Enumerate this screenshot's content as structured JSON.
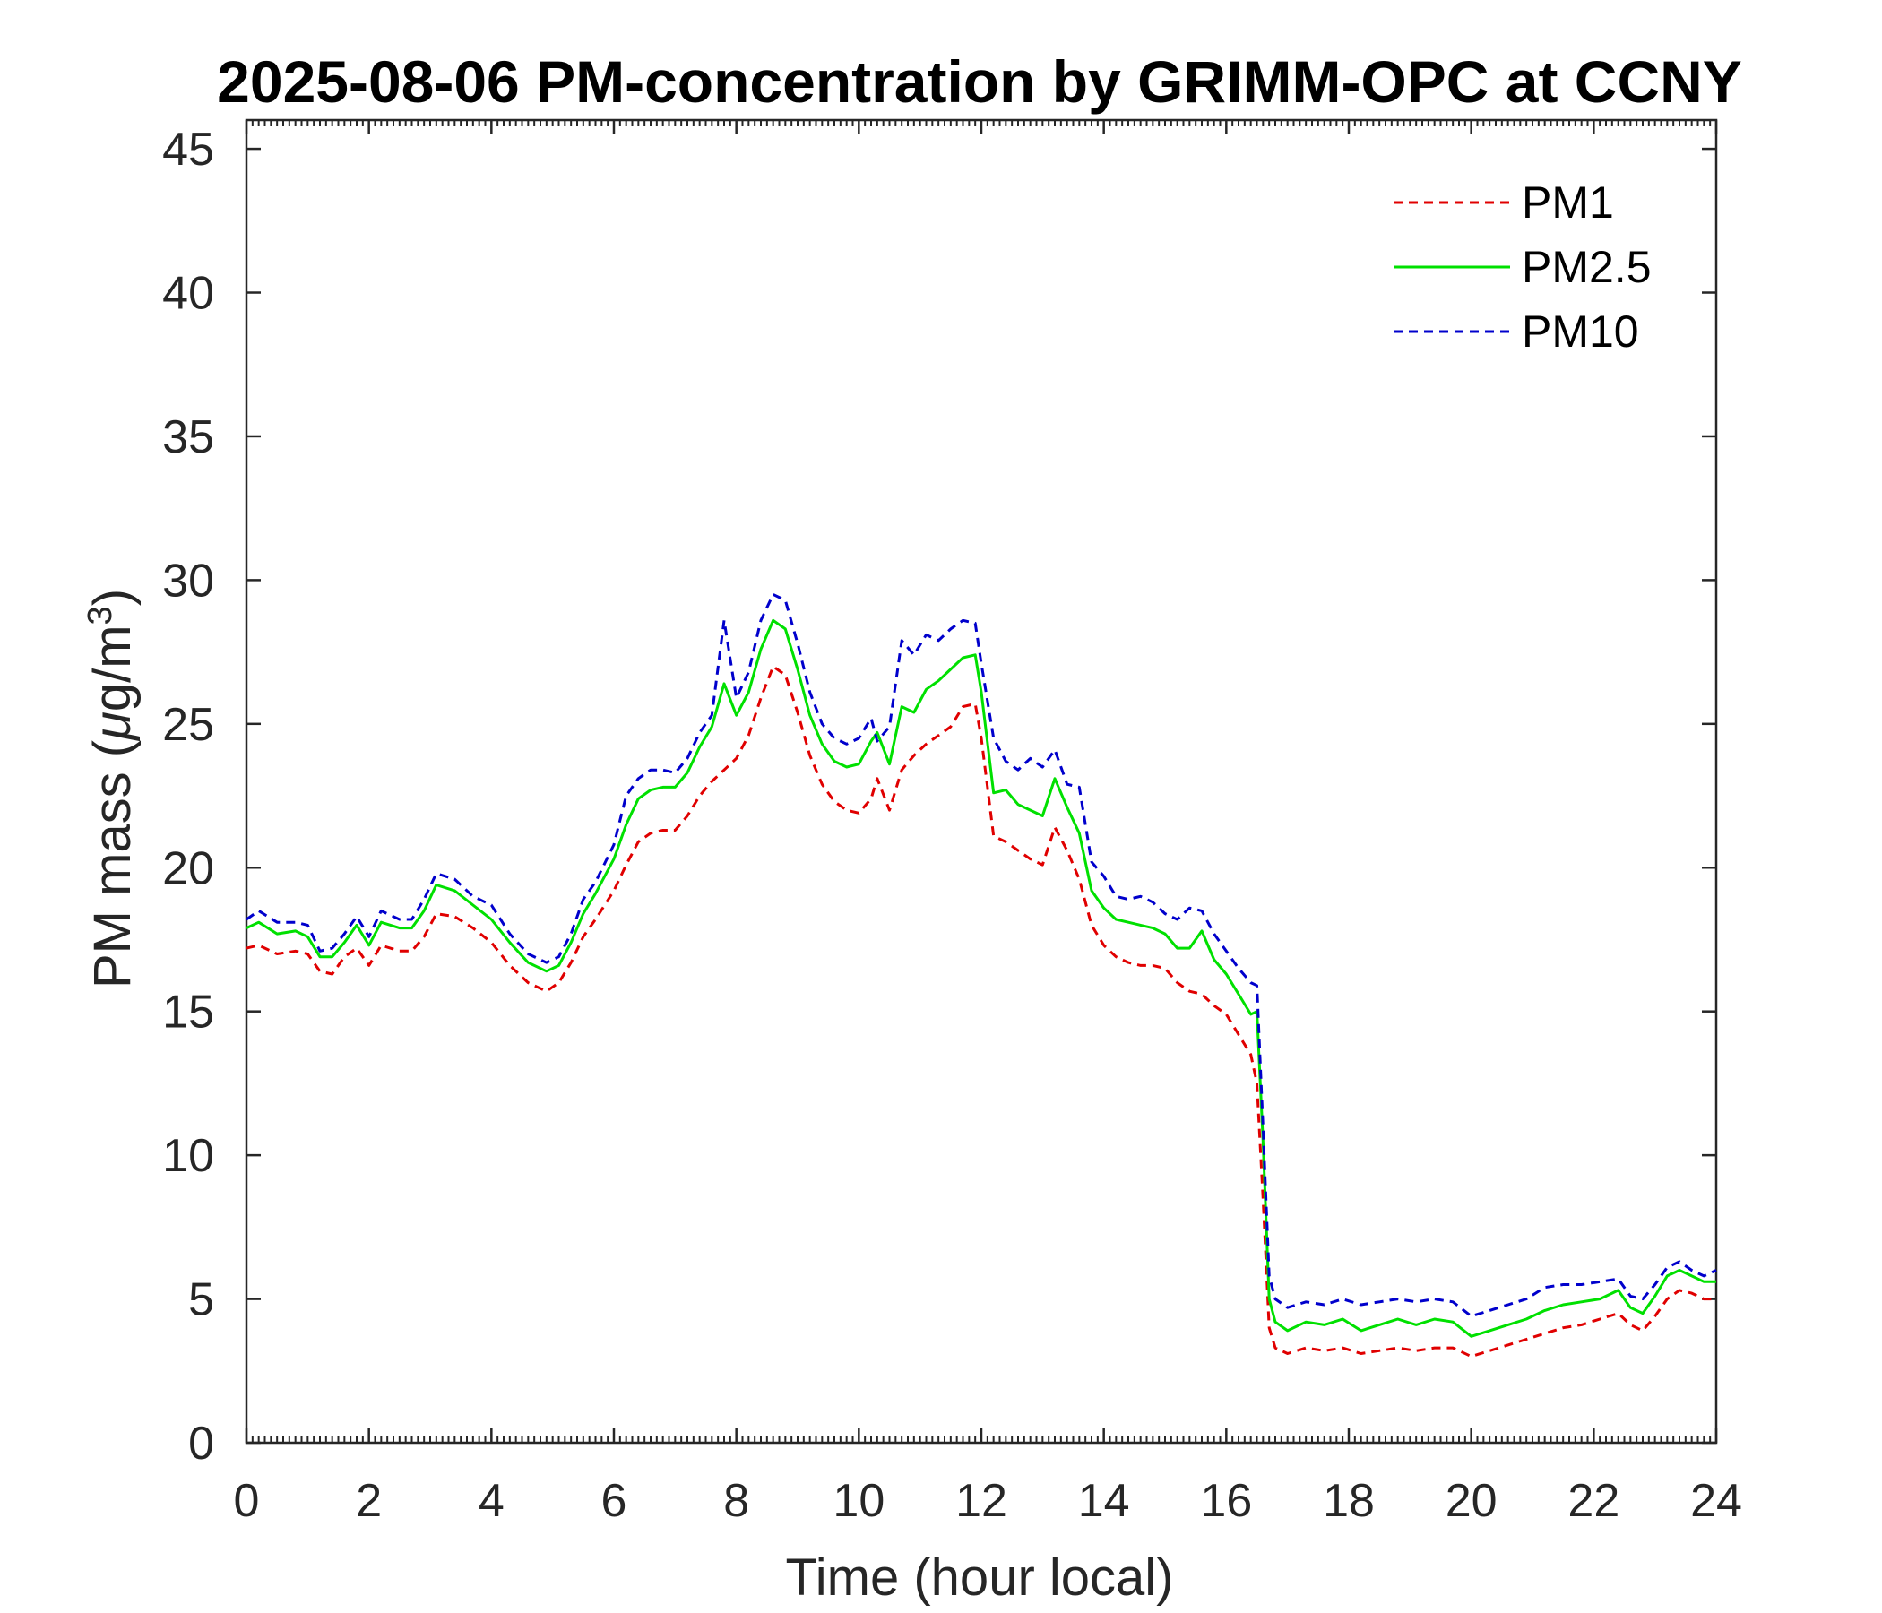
{
  "chart_data": {
    "type": "line",
    "title": "2025-08-06 PM-concentration by GRIMM-OPC at CCNY",
    "xlabel": "Time (hour local)",
    "ylabel": "PM mass (μg/m3)",
    "ylabel_parts": {
      "prefix": "PM mass (",
      "mu": "μ",
      "unit": "g/m",
      "sup": "3",
      "suffix": ")"
    },
    "xlim": [
      0,
      24
    ],
    "ylim": [
      0,
      46
    ],
    "xticks": [
      0,
      2,
      4,
      6,
      8,
      10,
      12,
      14,
      16,
      18,
      20,
      22,
      24
    ],
    "yticks": [
      0,
      5,
      10,
      15,
      20,
      25,
      30,
      35,
      40,
      45
    ],
    "grid": false,
    "legend_position": "top-right",
    "series": [
      {
        "name": "PM1",
        "color": "#e00000",
        "style": "dashed",
        "x": [
          0,
          0.2,
          0.5,
          0.8,
          1.0,
          1.2,
          1.4,
          1.6,
          1.8,
          2.0,
          2.2,
          2.5,
          2.7,
          2.9,
          3.1,
          3.4,
          3.7,
          4.0,
          4.3,
          4.6,
          4.9,
          5.1,
          5.3,
          5.5,
          5.7,
          6.0,
          6.2,
          6.4,
          6.6,
          6.8,
          7.0,
          7.2,
          7.4,
          7.6,
          7.8,
          8.0,
          8.2,
          8.4,
          8.6,
          8.8,
          9.0,
          9.2,
          9.4,
          9.6,
          9.8,
          10.0,
          10.2,
          10.3,
          10.5,
          10.7,
          10.9,
          11.1,
          11.3,
          11.5,
          11.7,
          11.9,
          12.0,
          12.2,
          12.4,
          12.6,
          12.8,
          13.0,
          13.2,
          13.4,
          13.6,
          13.8,
          14.0,
          14.2,
          14.4,
          14.6,
          14.8,
          15.0,
          15.2,
          15.4,
          15.6,
          15.8,
          16.0,
          16.2,
          16.4,
          16.5,
          16.6,
          16.7,
          16.8,
          17.0,
          17.3,
          17.6,
          17.9,
          18.2,
          18.5,
          18.8,
          19.1,
          19.4,
          19.7,
          20.0,
          20.3,
          20.6,
          20.9,
          21.2,
          21.5,
          21.8,
          22.1,
          22.4,
          22.6,
          22.8,
          23.0,
          23.2,
          23.4,
          23.6,
          23.8,
          24.0
        ],
        "y": [
          17.2,
          17.3,
          17.0,
          17.1,
          17.0,
          16.4,
          16.3,
          16.9,
          17.2,
          16.6,
          17.3,
          17.1,
          17.1,
          17.6,
          18.4,
          18.3,
          17.9,
          17.4,
          16.6,
          16.0,
          15.7,
          16.0,
          16.7,
          17.6,
          18.2,
          19.2,
          20.1,
          20.9,
          21.2,
          21.3,
          21.3,
          21.8,
          22.5,
          23.0,
          23.4,
          23.8,
          24.6,
          25.9,
          27.0,
          26.7,
          25.4,
          23.9,
          22.9,
          22.3,
          22.0,
          21.9,
          22.4,
          23.1,
          22.0,
          23.4,
          23.9,
          24.3,
          24.6,
          24.9,
          25.6,
          25.7,
          24.5,
          21.1,
          20.9,
          20.6,
          20.3,
          20.1,
          21.4,
          20.6,
          19.6,
          18.0,
          17.3,
          16.9,
          16.7,
          16.6,
          16.6,
          16.5,
          16.0,
          15.7,
          15.6,
          15.2,
          14.9,
          14.2,
          13.5,
          12.5,
          8.5,
          4.0,
          3.3,
          3.1,
          3.3,
          3.2,
          3.3,
          3.1,
          3.2,
          3.3,
          3.2,
          3.3,
          3.3,
          3.0,
          3.2,
          3.4,
          3.6,
          3.8,
          4.0,
          4.1,
          4.3,
          4.5,
          4.1,
          3.9,
          4.4,
          5.0,
          5.3,
          5.2,
          5.0,
          5.0
        ]
      },
      {
        "name": "PM2.5",
        "color": "#00e000",
        "style": "solid",
        "x": [
          0,
          0.2,
          0.5,
          0.8,
          1.0,
          1.2,
          1.4,
          1.6,
          1.8,
          2.0,
          2.2,
          2.5,
          2.7,
          2.9,
          3.1,
          3.4,
          3.7,
          4.0,
          4.3,
          4.6,
          4.9,
          5.1,
          5.3,
          5.5,
          5.7,
          6.0,
          6.2,
          6.4,
          6.6,
          6.8,
          7.0,
          7.2,
          7.4,
          7.6,
          7.8,
          8.0,
          8.2,
          8.4,
          8.6,
          8.8,
          9.0,
          9.2,
          9.4,
          9.6,
          9.8,
          10.0,
          10.2,
          10.3,
          10.5,
          10.7,
          10.9,
          11.1,
          11.3,
          11.5,
          11.7,
          11.9,
          12.0,
          12.2,
          12.4,
          12.6,
          12.8,
          13.0,
          13.2,
          13.4,
          13.6,
          13.8,
          14.0,
          14.2,
          14.4,
          14.6,
          14.8,
          15.0,
          15.2,
          15.4,
          15.6,
          15.8,
          16.0,
          16.2,
          16.4,
          16.5,
          16.6,
          16.7,
          16.8,
          17.0,
          17.3,
          17.6,
          17.9,
          18.2,
          18.5,
          18.8,
          19.1,
          19.4,
          19.7,
          20.0,
          20.3,
          20.6,
          20.9,
          21.2,
          21.5,
          21.8,
          22.1,
          22.4,
          22.6,
          22.8,
          23.0,
          23.2,
          23.4,
          23.6,
          23.8,
          24.0
        ],
        "y": [
          17.9,
          18.1,
          17.7,
          17.8,
          17.6,
          16.9,
          16.9,
          17.4,
          18.0,
          17.3,
          18.1,
          17.9,
          17.9,
          18.5,
          19.4,
          19.2,
          18.7,
          18.2,
          17.4,
          16.7,
          16.4,
          16.6,
          17.4,
          18.4,
          19.1,
          20.3,
          21.5,
          22.4,
          22.7,
          22.8,
          22.8,
          23.3,
          24.2,
          24.9,
          26.4,
          25.3,
          26.1,
          27.6,
          28.6,
          28.3,
          26.9,
          25.3,
          24.3,
          23.7,
          23.5,
          23.6,
          24.4,
          24.7,
          23.6,
          25.6,
          25.4,
          26.2,
          26.5,
          26.9,
          27.3,
          27.4,
          26.1,
          22.6,
          22.7,
          22.2,
          22.0,
          21.8,
          23.1,
          22.1,
          21.2,
          19.2,
          18.6,
          18.2,
          18.1,
          18.0,
          17.9,
          17.7,
          17.2,
          17.2,
          17.8,
          16.8,
          16.3,
          15.6,
          14.9,
          15.0,
          10.5,
          5.0,
          4.2,
          3.9,
          4.2,
          4.1,
          4.3,
          3.9,
          4.1,
          4.3,
          4.1,
          4.3,
          4.2,
          3.7,
          3.9,
          4.1,
          4.3,
          4.6,
          4.8,
          4.9,
          5.0,
          5.3,
          4.7,
          4.5,
          5.1,
          5.8,
          6.0,
          5.8,
          5.6,
          5.6
        ]
      },
      {
        "name": "PM10",
        "color": "#0000cc",
        "style": "dashed",
        "x": [
          0,
          0.2,
          0.5,
          0.8,
          1.0,
          1.2,
          1.4,
          1.6,
          1.8,
          2.0,
          2.2,
          2.5,
          2.7,
          2.9,
          3.1,
          3.4,
          3.7,
          4.0,
          4.3,
          4.6,
          4.9,
          5.1,
          5.3,
          5.5,
          5.7,
          6.0,
          6.2,
          6.4,
          6.6,
          6.8,
          7.0,
          7.2,
          7.4,
          7.6,
          7.8,
          8.0,
          8.2,
          8.4,
          8.6,
          8.8,
          9.0,
          9.2,
          9.4,
          9.6,
          9.8,
          10.0,
          10.2,
          10.3,
          10.5,
          10.7,
          10.9,
          11.1,
          11.3,
          11.5,
          11.7,
          11.9,
          12.0,
          12.2,
          12.4,
          12.6,
          12.8,
          13.0,
          13.2,
          13.4,
          13.6,
          13.8,
          14.0,
          14.2,
          14.4,
          14.6,
          14.8,
          15.0,
          15.2,
          15.4,
          15.6,
          15.8,
          16.0,
          16.2,
          16.4,
          16.5,
          16.6,
          16.7,
          16.8,
          17.0,
          17.3,
          17.6,
          17.9,
          18.2,
          18.5,
          18.8,
          19.1,
          19.4,
          19.7,
          20.0,
          20.3,
          20.6,
          20.9,
          21.2,
          21.5,
          21.8,
          22.1,
          22.4,
          22.6,
          22.8,
          23.0,
          23.2,
          23.4,
          23.6,
          23.8,
          24.0
        ],
        "y": [
          18.2,
          18.5,
          18.1,
          18.1,
          18.0,
          17.1,
          17.2,
          17.7,
          18.3,
          17.6,
          18.5,
          18.2,
          18.2,
          18.9,
          19.8,
          19.6,
          19.0,
          18.7,
          17.7,
          17.0,
          16.7,
          16.9,
          17.7,
          18.9,
          19.5,
          20.8,
          22.5,
          23.1,
          23.4,
          23.4,
          23.3,
          23.8,
          24.7,
          25.3,
          28.6,
          25.9,
          26.8,
          28.6,
          29.5,
          29.3,
          27.8,
          26.1,
          25.0,
          24.5,
          24.3,
          24.5,
          25.2,
          24.4,
          24.9,
          27.9,
          27.4,
          28.1,
          27.9,
          28.3,
          28.6,
          28.5,
          27.1,
          24.5,
          23.7,
          23.4,
          23.8,
          23.5,
          24.1,
          22.9,
          22.8,
          20.2,
          19.7,
          19.0,
          18.9,
          19.0,
          18.8,
          18.4,
          18.2,
          18.6,
          18.5,
          17.7,
          17.1,
          16.5,
          16.0,
          15.9,
          11.0,
          5.8,
          5.0,
          4.7,
          4.9,
          4.8,
          5.0,
          4.8,
          4.9,
          5.0,
          4.9,
          5.0,
          4.9,
          4.4,
          4.6,
          4.8,
          5.0,
          5.4,
          5.5,
          5.5,
          5.6,
          5.7,
          5.1,
          5.0,
          5.5,
          6.1,
          6.3,
          6.0,
          5.8,
          6.0
        ]
      }
    ]
  }
}
